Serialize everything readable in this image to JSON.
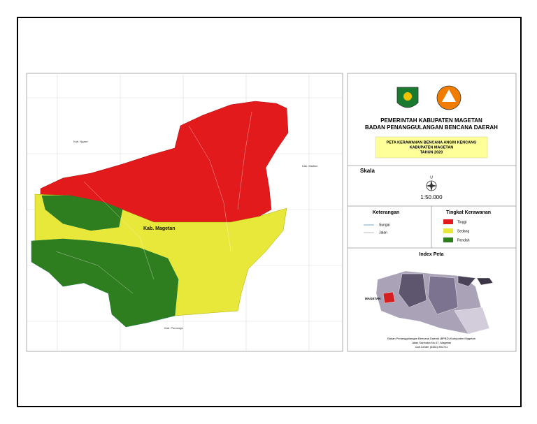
{
  "header": {
    "line1": "PEMERINTAH KABUPATEN MAGETAN",
    "line2": "BADAN PENANGGULANGAN BENCANA DAERAH"
  },
  "map_title": {
    "line1": "PETA KERAWANAN BENCANA ANGIN KENCANG",
    "line2": "KABUPATEN MAGETAN",
    "line3": "TAHUN 2020"
  },
  "scale": {
    "title": "Skala",
    "north": "U",
    "ratio": "1:50.000"
  },
  "legend": {
    "title": "Keterangan",
    "items": [
      "Sungai",
      "Jalan"
    ]
  },
  "hazard": {
    "title": "Tingkat Kerawanan",
    "levels": [
      "Tinggi",
      "Sedang",
      "Rendah"
    ]
  },
  "index": {
    "title": "Index Peta",
    "label": "MAGETAN"
  },
  "footer": {
    "line1": "Badan Penanggulangan Bencana Daerah (BPBD) Kabupaten Magetan",
    "line2": "Jalan Samudra No.47, Magetan",
    "line3": "Call Center (0351) 891711"
  },
  "map_labels": {
    "north": "Kab. Ngawi",
    "east": "Kab. Madiun",
    "south": "Kab. Ponorogo",
    "center": "Kab. Magetan"
  }
}
